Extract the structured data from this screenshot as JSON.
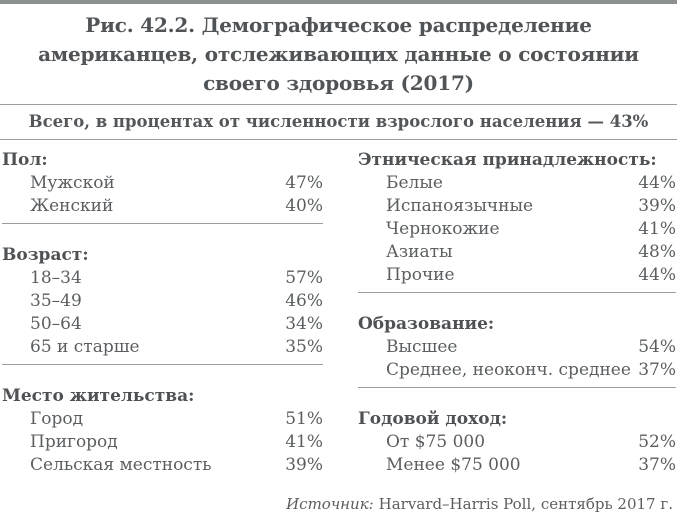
{
  "figure": {
    "title_lines": [
      "Рис. 42.2. Демографическое распределение",
      "американцев, отслеживающих данные о состоянии",
      "своего здоровья (2017)"
    ],
    "total_line": "Всего, в процентах от численности взрослого населения — 43%",
    "source": {
      "label": "Источник:",
      "text": "Harvard–Harris Poll, сентябрь 2017 г."
    }
  },
  "columns": {
    "left": {
      "sections": [
        {
          "heading": "Пол:",
          "items": [
            {
              "label": "Мужской",
              "value": "47%"
            },
            {
              "label": "Женский",
              "value": "40%"
            }
          ]
        },
        {
          "heading": "Возраст:",
          "items": [
            {
              "label": "18–34",
              "value": "57%"
            },
            {
              "label": "35–49",
              "value": "46%"
            },
            {
              "label": "50–64",
              "value": "34%"
            },
            {
              "label": "65 и старше",
              "value": "35%"
            }
          ]
        },
        {
          "heading": "Место жительства:",
          "items": [
            {
              "label": "Город",
              "value": "51%"
            },
            {
              "label": "Пригород",
              "value": "41%"
            },
            {
              "label": "Сельская местность",
              "value": "39%"
            }
          ]
        }
      ]
    },
    "right": {
      "sections": [
        {
          "heading": "Этническая принадлежность:",
          "items": [
            {
              "label": "Белые",
              "value": "44%"
            },
            {
              "label": "Испаноязычные",
              "value": "39%"
            },
            {
              "label": "Чернокожие",
              "value": "41%"
            },
            {
              "label": "Азиаты",
              "value": "48%"
            },
            {
              "label": "Прочие",
              "value": "44%"
            }
          ]
        },
        {
          "heading": "Образование:",
          "items": [
            {
              "label": "Высшее",
              "value": "54%"
            },
            {
              "label": "Среднее, неоконч. среднее",
              "value": "37%"
            }
          ]
        },
        {
          "heading": "Годовой доход:",
          "items": [
            {
              "label": "От $75 000",
              "value": "52%"
            },
            {
              "label": "Менее $75 000",
              "value": "37%"
            }
          ]
        }
      ]
    }
  },
  "chart_data": {
    "type": "table",
    "title": "Рис. 42.2. Демографическое распределение американцев, отслеживающих данные о состоянии своего здоровья (2017)",
    "total": {
      "label": "Всего, в процентах от численности взрослого населения",
      "value": 43
    },
    "groups": [
      {
        "group": "Пол",
        "categories": [
          "Мужской",
          "Женский"
        ],
        "values": [
          47,
          40
        ]
      },
      {
        "group": "Возраст",
        "categories": [
          "18–34",
          "35–49",
          "50–64",
          "65 и старше"
        ],
        "values": [
          57,
          46,
          34,
          35
        ]
      },
      {
        "group": "Место жительства",
        "categories": [
          "Город",
          "Пригород",
          "Сельская местность"
        ],
        "values": [
          51,
          41,
          39
        ]
      },
      {
        "group": "Этническая принадлежность",
        "categories": [
          "Белые",
          "Испаноязычные",
          "Чернокожие",
          "Азиаты",
          "Прочие"
        ],
        "values": [
          44,
          39,
          41,
          48,
          44
        ]
      },
      {
        "group": "Образование",
        "categories": [
          "Высшее",
          "Среднее, неоконч. среднее"
        ],
        "values": [
          54,
          37
        ]
      },
      {
        "group": "Годовой доход",
        "categories": [
          "От $75 000",
          "Менее $75 000"
        ],
        "values": [
          52,
          37
        ]
      }
    ],
    "unit": "%",
    "source": "Источник: Harvard–Harris Poll, сентябрь 2017 г."
  }
}
